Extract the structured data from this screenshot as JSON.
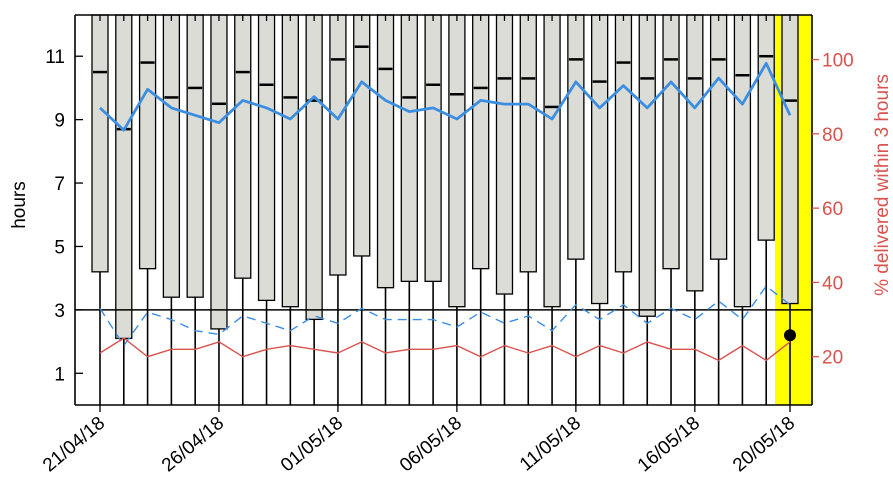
{
  "chart_data": {
    "type": "box",
    "ylabel": "hours",
    "y2label": "% delivered within 3 hours",
    "x_tick_labels": [
      "21/04/18",
      "26/04/18",
      "01/05/18",
      "06/05/18",
      "11/05/18",
      "16/05/18",
      "20/05/18"
    ],
    "x_tick_index": [
      0,
      5,
      10,
      15,
      20,
      25,
      29
    ],
    "highlight_index": 29,
    "highlight_color": "#ffff00",
    "ylim": [
      0,
      12.3
    ],
    "yticks": [
      1,
      3,
      5,
      7,
      9,
      11
    ],
    "y2lim": [
      7,
      112
    ],
    "y2ticks": [
      20,
      40,
      60,
      80,
      100
    ],
    "reference_line_hours": 3,
    "boxes": {
      "q1": [
        4.2,
        2.1,
        4.3,
        3.4,
        3.4,
        2.4,
        4.0,
        3.3,
        3.1,
        2.7,
        4.1,
        4.7,
        3.7,
        3.9,
        3.9,
        3.1,
        4.3,
        3.5,
        4.2,
        3.1,
        4.6,
        3.2,
        4.2,
        2.8,
        4.3,
        3.6,
        4.6,
        3.1,
        5.2,
        3.2
      ],
      "median": [
        10.5,
        8.7,
        10.8,
        9.7,
        10.0,
        9.5,
        10.5,
        10.1,
        9.7,
        9.6,
        10.9,
        11.3,
        10.6,
        9.7,
        10.1,
        9.8,
        10.0,
        10.3,
        10.3,
        9.4,
        10.9,
        10.2,
        10.8,
        10.3,
        10.9,
        10.3,
        10.9,
        10.4,
        11.0,
        9.6
      ],
      "whisker_top": 12.3,
      "whisker_bottom": 0
    },
    "series": [
      {
        "values": [
          87,
          81,
          92,
          87,
          85,
          83,
          89,
          87,
          84,
          90,
          84,
          94,
          89,
          86,
          87,
          84,
          89,
          88,
          88,
          84,
          94,
          87,
          93,
          87,
          94,
          87,
          95,
          88,
          99,
          85
        ],
        "color": "#3b8ee0",
        "style": "solid",
        "axis": "right"
      },
      {
        "values": [
          33,
          23,
          32,
          30,
          27,
          26,
          31,
          29,
          27,
          31,
          29,
          33,
          30,
          30,
          30,
          28,
          32,
          29,
          31,
          27,
          34,
          30,
          34,
          29,
          33,
          30,
          35,
          30,
          39,
          34
        ],
        "color": "#3b8ee0",
        "style": "dashed",
        "axis": "right"
      },
      {
        "values": [
          21,
          25,
          20,
          22,
          22,
          24,
          20,
          22,
          23,
          22,
          21,
          24,
          21,
          22,
          22,
          23,
          20,
          23,
          21,
          23,
          20,
          23,
          21,
          24,
          22,
          22,
          19,
          23,
          19,
          24
        ],
        "color": "#d9534f",
        "style": "solid",
        "axis": "right"
      }
    ],
    "marker": {
      "index": 29,
      "value": 2.2
    }
  }
}
